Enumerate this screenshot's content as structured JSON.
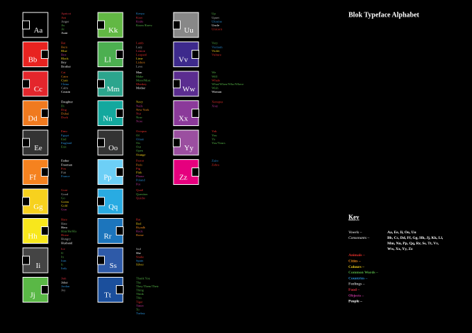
{
  "title": "Blok Typeface Alphabet",
  "letters": [
    {
      "label": "Aa",
      "color": "#000000",
      "words": [
        {
          "text": "Apricot",
          "color": "#e03040"
        },
        {
          "text": "Ant",
          "color": "#e8302a"
        },
        {
          "text": "Anger",
          "color": "#bbbbbb"
        },
        {
          "text": "As",
          "color": "#56b347"
        },
        {
          "text": "At",
          "color": "#56b347"
        },
        {
          "text": "Aunt",
          "color": "#ffffff"
        }
      ]
    },
    {
      "label": "Bb",
      "color": "#e82320",
      "words": [
        {
          "text": "Bat",
          "color": "#e8302a"
        },
        {
          "text": "Bern",
          "color": "#f08a1c"
        },
        {
          "text": "Blue",
          "color": "#f5d21b"
        },
        {
          "text": "Box",
          "color": "#c0369a"
        },
        {
          "text": "Black",
          "color": "#f5d21b"
        },
        {
          "text": "Boy",
          "color": "#ffffff"
        },
        {
          "text": "Brother",
          "color": "#ffffff"
        }
      ]
    },
    {
      "label": "Cc",
      "color": "#e4262c",
      "words": [
        {
          "text": "Cat",
          "color": "#e8302a"
        },
        {
          "text": "Cairo",
          "color": "#f08a1c"
        },
        {
          "text": "Cyan",
          "color": "#f5d21b"
        },
        {
          "text": "China",
          "color": "#2a8fd6"
        },
        {
          "text": "Calm",
          "color": "#bbbbbb"
        },
        {
          "text": "Cousin",
          "color": "#ffffff"
        }
      ]
    },
    {
      "label": "Dd",
      "color": "#f07a1f",
      "words": [
        {
          "text": "Daughter",
          "color": "#ffffff"
        },
        {
          "text": "Di",
          "color": "#56b347"
        },
        {
          "text": "Dog",
          "color": "#e8302a"
        },
        {
          "text": "Dubai",
          "color": "#f08a1c"
        },
        {
          "text": "Duck",
          "color": "#e8302a"
        }
      ]
    },
    {
      "label": "Ee",
      "color": "#333333",
      "words": [
        {
          "text": "Emu",
          "color": "#e8302a"
        },
        {
          "text": "Egypt",
          "color": "#2a8fd6"
        },
        {
          "text": "End",
          "color": "#56b347"
        },
        {
          "text": "England",
          "color": "#2a8fd6"
        },
        {
          "text": "Exit",
          "color": "#56b347"
        }
      ]
    },
    {
      "label": "Ff",
      "color": "#f5821f",
      "words": [
        {
          "text": "Father",
          "color": "#ffffff"
        },
        {
          "text": "Freeman",
          "color": "#ffffff"
        },
        {
          "text": "Fox",
          "color": "#e8302a"
        },
        {
          "text": "Fun",
          "color": "#bbbbbb"
        },
        {
          "text": "France",
          "color": "#2a8fd6"
        }
      ]
    },
    {
      "label": "Gg",
      "color": "#f7d11e",
      "words": [
        {
          "text": "Goat",
          "color": "#e8302a"
        },
        {
          "text": "Good",
          "color": "#bbbbbb"
        },
        {
          "text": "Go",
          "color": "#56b347"
        },
        {
          "text": "Green",
          "color": "#f5d21b"
        },
        {
          "text": "Gold",
          "color": "#f5d21b"
        },
        {
          "text": "Gun",
          "color": "#c0369a"
        }
      ]
    },
    {
      "label": "Hh",
      "color": "#f8e71c",
      "words": [
        {
          "text": "Hare",
          "color": "#e8302a"
        },
        {
          "text": "Hate",
          "color": "#bbbbbb"
        },
        {
          "text": "Hero",
          "color": "#ffffff"
        },
        {
          "text": "Him/He/His",
          "color": "#56b347"
        },
        {
          "text": "Horse",
          "color": "#e8302a"
        },
        {
          "text": "Hungry",
          "color": "#bbbbbb"
        },
        {
          "text": "Husband",
          "color": "#ffffff"
        }
      ]
    },
    {
      "label": "Ii",
      "color": "#444444",
      "words": [
        {
          "text": "Ice",
          "color": "#e03040"
        },
        {
          "text": "If",
          "color": "#56b347"
        },
        {
          "text": "In",
          "color": "#56b347"
        },
        {
          "text": "Iran",
          "color": "#2a8fd6"
        },
        {
          "text": "It",
          "color": "#56b347"
        },
        {
          "text": "Italy",
          "color": "#2a8fd6"
        }
      ]
    },
    {
      "label": "Jj",
      "color": "#5ab846",
      "words": [
        {
          "text": "Jam",
          "color": "#e03040"
        },
        {
          "text": "Joker",
          "color": "#ffffff"
        },
        {
          "text": "Jordan",
          "color": "#2a8fd6"
        },
        {
          "text": "Joy",
          "color": "#bbbbbb"
        }
      ]
    },
    {
      "label": "Kk",
      "color": "#62b844",
      "words": [
        {
          "text": "Kenya",
          "color": "#2a8fd6"
        },
        {
          "text": "Kiwi",
          "color": "#e03040"
        },
        {
          "text": "Knife",
          "color": "#c0369a"
        },
        {
          "text": "Know/Knew",
          "color": "#56b347"
        }
      ]
    },
    {
      "label": "Ll",
      "color": "#4caf50",
      "words": [
        {
          "text": "Lamb",
          "color": "#e8302a"
        },
        {
          "text": "Lazy",
          "color": "#bbbbbb"
        },
        {
          "text": "Lemon",
          "color": "#e03040"
        },
        {
          "text": "Leopard",
          "color": "#e8302a"
        },
        {
          "text": "Lime",
          "color": "#f5d21b"
        },
        {
          "text": "Lisbon",
          "color": "#f08a1c"
        },
        {
          "text": "Love",
          "color": "#bbbbbb"
        }
      ]
    },
    {
      "label": "Mm",
      "color": "#2ca58d",
      "words": [
        {
          "text": "Man",
          "color": "#ffffff"
        },
        {
          "text": "Make",
          "color": "#56b347"
        },
        {
          "text": "More/Most",
          "color": "#56b347"
        },
        {
          "text": "Monkey",
          "color": "#e8302a"
        },
        {
          "text": "Mother",
          "color": "#ffffff"
        }
      ]
    },
    {
      "label": "Nn",
      "color": "#13a89e",
      "words": [
        {
          "text": "Navy",
          "color": "#f5d21b"
        },
        {
          "text": "Nails",
          "color": "#c0369a"
        },
        {
          "text": "New York",
          "color": "#f08a1c"
        },
        {
          "text": "Nut",
          "color": "#e03040"
        },
        {
          "text": "Now",
          "color": "#56b347"
        },
        {
          "text": "Nose",
          "color": "#c0369a"
        }
      ]
    },
    {
      "label": "Oo",
      "color": "#333333",
      "words": [
        {
          "text": "Octopus",
          "color": "#e8302a"
        },
        {
          "text": "Of",
          "color": "#56b347"
        },
        {
          "text": "Oman",
          "color": "#2a8fd6"
        },
        {
          "text": "On",
          "color": "#56b347"
        },
        {
          "text": "Out",
          "color": "#56b347"
        },
        {
          "text": "Open",
          "color": "#56b347"
        },
        {
          "text": "Orange",
          "color": "#f5d21b"
        }
      ]
    },
    {
      "label": "Pp",
      "color": "#6dcff6",
      "words": [
        {
          "text": "Parrot",
          "color": "#e8302a"
        },
        {
          "text": "Paris",
          "color": "#f08a1c"
        },
        {
          "text": "Pig",
          "color": "#e8302a"
        },
        {
          "text": "Pink",
          "color": "#f5d21b"
        },
        {
          "text": "Phone",
          "color": "#c0369a"
        },
        {
          "text": "Poland",
          "color": "#2a8fd6"
        },
        {
          "text": "Pot",
          "color": "#c0369a"
        }
      ]
    },
    {
      "label": "Qq",
      "color": "#29abe2",
      "words": [
        {
          "text": "Quail",
          "color": "#e8302a"
        },
        {
          "text": "Question",
          "color": "#56b347"
        },
        {
          "text": "Quiche",
          "color": "#e03040"
        }
      ]
    },
    {
      "label": "Rr",
      "color": "#1c75bc",
      "words": [
        {
          "text": "Rat",
          "color": "#e8302a"
        },
        {
          "text": "Red",
          "color": "#f5d21b"
        },
        {
          "text": "Riyadh",
          "color": "#f08a1c"
        },
        {
          "text": "Rock",
          "color": "#c0369a"
        },
        {
          "text": "Rome",
          "color": "#f08a1c"
        }
      ]
    },
    {
      "label": "Ss",
      "color": "#2e5aa8",
      "words": [
        {
          "text": "Sad",
          "color": "#bbbbbb"
        },
        {
          "text": "She",
          "color": "#ffffff"
        },
        {
          "text": "Snake",
          "color": "#e8302a"
        },
        {
          "text": "Spain",
          "color": "#2a8fd6"
        },
        {
          "text": "Silver",
          "color": "#f5d21b"
        }
      ]
    },
    {
      "label": "Tt",
      "color": "#1b4f9c",
      "words": [
        {
          "text": "Thank You",
          "color": "#56b347"
        },
        {
          "text": "The",
          "color": "#56b347"
        },
        {
          "text": "They/Them/Their",
          "color": "#56b347"
        },
        {
          "text": "Thing",
          "color": "#56b347"
        },
        {
          "text": "Think",
          "color": "#56b347"
        },
        {
          "text": "This",
          "color": "#56b347"
        },
        {
          "text": "Tiger",
          "color": "#e8302a"
        },
        {
          "text": "Timer",
          "color": "#c0369a"
        },
        {
          "text": "To",
          "color": "#56b347"
        },
        {
          "text": "Turkey",
          "color": "#2a8fd6"
        }
      ]
    },
    {
      "label": "Uu",
      "color": "#888888",
      "words": [
        {
          "text": "Up",
          "color": "#56b347"
        },
        {
          "text": "Upset",
          "color": "#bbbbbb"
        },
        {
          "text": "Ukraine",
          "color": "#2a8fd6"
        },
        {
          "text": "Uncle",
          "color": "#ffffff"
        },
        {
          "text": "Unicorn",
          "color": "#e8302a"
        }
      ]
    },
    {
      "label": "Vv",
      "color": "#3d2a8c",
      "words": [
        {
          "text": "Very",
          "color": "#56b347"
        },
        {
          "text": "Vietnam",
          "color": "#2a8fd6"
        },
        {
          "text": "Violet",
          "color": "#f5d21b"
        },
        {
          "text": "Vulture",
          "color": "#e8302a"
        }
      ]
    },
    {
      "label": "Ww",
      "color": "#5b2d90",
      "words": [
        {
          "text": "We",
          "color": "#56b347"
        },
        {
          "text": "Will",
          "color": "#56b347"
        },
        {
          "text": "Whale",
          "color": "#e8302a"
        },
        {
          "text": "What/When/Who/Where",
          "color": "#56b347"
        },
        {
          "text": "Wish",
          "color": "#56b347"
        },
        {
          "text": "Woman",
          "color": "#ffffff"
        }
      ]
    },
    {
      "label": "Xx",
      "color": "#8b3a9a",
      "words": [
        {
          "text": "Xenopus",
          "color": "#e8302a"
        },
        {
          "text": "Xray",
          "color": "#c0369a"
        }
      ]
    },
    {
      "label": "Yy",
      "color": "#9b4fa0",
      "words": [
        {
          "text": "Yak",
          "color": "#e8302a"
        },
        {
          "text": "You",
          "color": "#56b347"
        },
        {
          "text": "Yo",
          "color": "#56b347"
        },
        {
          "text": "You/Yours",
          "color": "#56b347"
        }
      ]
    },
    {
      "label": "Zz",
      "color": "#e6007e",
      "words": [
        {
          "text": "Zaire",
          "color": "#2a8fd6"
        },
        {
          "text": "Zebra",
          "color": "#e8302a"
        }
      ]
    }
  ],
  "key": {
    "heading": "Key",
    "rows": [
      {
        "label": "Vowels –",
        "lines": [
          "Aa, Ee, Ii, Oo, Uu"
        ]
      },
      {
        "label": "Consonants –",
        "lines": [
          "Bb, Cc, Dd, Ff, Gg, Hh, Jj, Kk, Ll,",
          "Mm, Nn, Pp, Qq, Rr, Ss, Tt, Vv,",
          "Ww, Xx, Yy, Zz"
        ]
      }
    ],
    "categories": [
      {
        "text": "Animals –",
        "color": "#e8302a"
      },
      {
        "text": "Cities –",
        "color": "#f08a1c"
      },
      {
        "text": "Colours –",
        "color": "#f5d21b"
      },
      {
        "text": "Common Words –",
        "color": "#56b347"
      },
      {
        "text": "Countries –",
        "color": "#2a8fd6"
      },
      {
        "text": "Feelings –",
        "color": "#bbbbbb"
      },
      {
        "text": "Food –",
        "color": "#e03040"
      },
      {
        "text": "Objects –",
        "color": "#c0369a"
      },
      {
        "text": "People –",
        "color": "#ffffff"
      }
    ]
  }
}
